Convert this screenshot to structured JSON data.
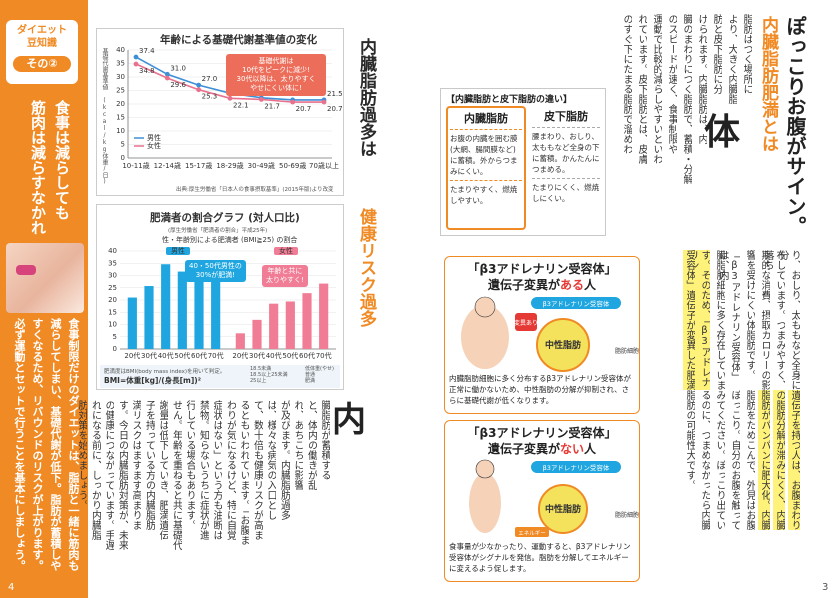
{
  "sidebar": {
    "badge_line1": "ダイエット",
    "badge_line2": "豆知識",
    "badge_num": "その②",
    "title_col1": "食事は減らしても",
    "title_col2": "筋肉は減らすなかれ",
    "body_cols": [
      "食事制限だけのダイエットは、脂肪と一緒に筋肉も",
      "減らしてしまい、基礎代謝が低下。脂肪が蓄積しや",
      "すくなるため、リバウンドのリスクが上がります。",
      "必ず運動とセットで行うことを基本にしましょう。"
    ],
    "color": "#f08a24"
  },
  "left_page": {
    "page_number": "4",
    "chart1": {
      "title": "年齢による基礎代謝基準値の変化",
      "ylabel": "基礎代謝基準値 (kcal/kg体重/日)",
      "callout": [
        "基礎代謝は",
        "10代をピークに減少!",
        "30代以降は、太りやすく",
        "やせにくい体に!"
      ],
      "source": "出典:厚生労働省「日本人の食事摂取基準」(2015年版)より改変",
      "legend_male": "男性",
      "legend_female": "女性"
    },
    "chart2": {
      "title": "肥満者の割合グラフ (対人口比)",
      "subtitle1": "(厚生労働省「肥満者の割合」平成25年)",
      "subtitle2": "性・年齢別による肥満者 (BMI≧25) の割合",
      "tag_male": "男性",
      "tag_female": "女性",
      "callout_male": [
        "40・50代男性の",
        "30%が肥満!"
      ],
      "callout_female": [
        "年齢と共に",
        "太りやすく!"
      ],
      "bmi_note": "肥満度はBMI(body mass index)を用いて判定。",
      "bmi_formula": "BMI=体重[kg]/(身長[m])²",
      "bmi_ranges": [
        "18.5未満",
        "18.5以上25未満",
        "25以上"
      ],
      "bmi_labels": [
        "低体重(やせ)",
        "普通",
        "肥満"
      ]
    },
    "mid_title": [
      "内臓脂肪過多は",
      "健康リスク過多"
    ],
    "mid_title_highlight": "健康リスク過多",
    "big_char": "内",
    "body_cols": [
      "臓脂肪が蓄積する",
      "と、体内の働きが乱",
      "れ、あちこちに影響",
      "が及びます。内臓脂肪過多",
      "は、様々な病気の入口とし",
      "て、数十倍も健康リスクが高ま",
      "るともいわれています。「お腹ま",
      "わりが気になるけど、特に自覚",
      "症状はない」という方も油断は",
      "禁物。知らないうちに症状が進",
      "行している場合もあります。",
      "せん。年齢を重ねると共に基礎代",
      "謝量は低下していき、肥満遺伝",
      "子を持っている方の内臓脂肪",
      "満リスクはますます高まりま",
      "す。今日の内臓脂肪対策が、未来",
      "の健康につながっています。手遅",
      "れになる前に、しっかり内臓脂",
      "肪対策を始めましょう。"
    ]
  },
  "right_page": {
    "page_number": "3",
    "title_col1": "ぽっこりお腹がサイン。",
    "title_col2": "内臓脂肪肥満とは",
    "big_char": "体",
    "cols_a": [
      "脂肪はつく場所に",
      "より、大きく内臓脂",
      "肪と皮下脂肪に分",
      "けられます。内臓脂肪は、内",
      "臓のまわりにつく脂肪で、蓄積・分解",
      "のスピードが速く、食事制限や",
      "運動で比較的減らしやすいといわ",
      "れています。皮下脂肪とは、皮膚",
      "のすぐ下にたまる脂肪で溜めわ"
    ],
    "compare": {
      "title": "【内臓脂肪と皮下脂肪の違い】",
      "left_head": "内臓脂肪",
      "left_items": [
        "お腹の内臓を囲む膜(大網、腸間膜など)に蓄積。外からつまみにくい。",
        "たまりやすく、燃焼しやすい。"
      ],
      "right_head": "皮下脂肪",
      "right_items": [
        "腰まわり、おしり、太ももなど全身の下に蓄積。かんたんにつまめる。",
        "たまりにくく、燃焼しにくい。"
      ]
    },
    "cols_b": [
      "り、おしり、太ももなど全身に分",
      "布しています。つまみやすく、落ち",
      "期的な消費、摂取カロリーの影",
      "響を受けにくい体脂肪です。",
      "「β3アドレナリン受容体」は、内",
      "臓脂肪細胞に多く存在していま",
      "す。そのため、「β3アドレナリン",
      "受容体」遺伝子が変異した肥満"
    ],
    "cols_c": [
      "遺伝子を持つ人は、お腹まわり",
      "の脂肪分解が滞みにくく、内臓",
      "脂肪がパンパンに肥大化。内臓",
      "脂肪をためこんで、外見はお腹",
      "ぽっこり。自分のお腹を触って",
      "みてください。ぽっこり出てい",
      "るのに、つまめなかったら内臓",
      "脂肪の可能性大です。"
    ],
    "beta1": {
      "head_line1": "「β3アドレナリン受容体」",
      "head_line2_pre": "遺伝子変異が",
      "head_line2_emph": "ある",
      "head_line2_post": "人",
      "tag": "変異あり",
      "receptor": "β3アドレナリン受容体",
      "side_label": "脂肪細胞",
      "fat": "中性脂肪",
      "caption": "内臓脂肪細胞に多く分布するβ3アドレナリン受容体が正常に働かないため、中性脂肪の分解が抑制され、さらに基礎代謝が低くなります。"
    },
    "beta2": {
      "head_line1": "「β3アドレナリン受容体」",
      "head_line2_pre": "遺伝子変異が",
      "head_line2_emph": "ない",
      "head_line2_post": "人",
      "receptor": "β3アドレナリン受容体",
      "side_label": "脂肪細胞",
      "fat": "中性脂肪",
      "energy": "エネルギー",
      "caption": "食事量が少なかったり、運動すると、β3アドレナリン受容体がシグナルを発信。脂肪を分解してエネルギーに変えるよう促します。"
    }
  },
  "chart_data": [
    {
      "type": "line",
      "title": "年齢による基礎代謝基準値の変化",
      "ylabel": "基礎代謝基準値 (kcal/kg体重/日)",
      "categories": [
        "10-11歳",
        "12-14歳",
        "15-17歳",
        "18-29歳",
        "30-49歳",
        "50-69歳",
        "70歳以上"
      ],
      "ylim": [
        0,
        40
      ],
      "yticks": [
        0,
        5,
        10,
        15,
        20,
        25,
        30,
        35,
        40
      ],
      "series": [
        {
          "name": "男性",
          "values": [
            37.4,
            31.0,
            27.0,
            24.0,
            22.3,
            21.5,
            21.5
          ],
          "color": "#3d8fd6"
        },
        {
          "name": "女性",
          "values": [
            34.8,
            29.6,
            25.3,
            22.1,
            21.7,
            20.7,
            20.7
          ],
          "color": "#e8718d"
        }
      ]
    },
    {
      "type": "bar",
      "title": "肥満者の割合グラフ (対人口比)",
      "ylim": [
        0,
        40
      ],
      "yticks": [
        0,
        5,
        10,
        15,
        20,
        25,
        30,
        35,
        40
      ],
      "categories": [
        "20代",
        "30代",
        "40代",
        "50代",
        "60代",
        "70代"
      ],
      "series": [
        {
          "name": "男性",
          "values": [
            21.0,
            25.7,
            34.6,
            31.6,
            30.4,
            29.2
          ],
          "color": "#1fa6e0"
        },
        {
          "name": "女性",
          "values": [
            6.4,
            11.9,
            18.5,
            19.4,
            22.8,
            26.7
          ],
          "color": "#f07d95"
        }
      ]
    }
  ]
}
